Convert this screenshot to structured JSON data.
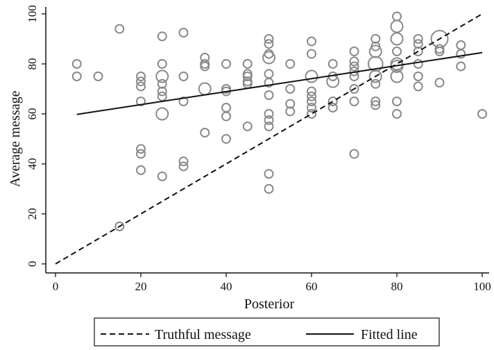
{
  "chart_data": {
    "type": "scatter",
    "xlabel": "Posterior",
    "ylabel": "Average message",
    "xlim": [
      0,
      100
    ],
    "ylim": [
      0,
      100
    ],
    "xticks": [
      0,
      20,
      40,
      60,
      80,
      100
    ],
    "yticks": [
      0,
      20,
      40,
      60,
      80,
      100
    ],
    "grid": false,
    "legend_position": "bottom",
    "legend": [
      {
        "label": "Truthful message",
        "style": "dashed"
      },
      {
        "label": "Fitted line",
        "style": "solid"
      }
    ],
    "lines": [
      {
        "name": "Truthful message",
        "style": "dashed",
        "x": [
          0,
          100
        ],
        "y": [
          0,
          100
        ]
      },
      {
        "name": "Fitted line",
        "style": "solid",
        "x": [
          5,
          100
        ],
        "y": [
          59.8,
          84.5
        ]
      }
    ],
    "points": [
      {
        "x": 5,
        "y": 80,
        "s": 1
      },
      {
        "x": 5,
        "y": 75,
        "s": 1
      },
      {
        "x": 10,
        "y": 75,
        "s": 1
      },
      {
        "x": 15,
        "y": 94,
        "s": 1
      },
      {
        "x": 15,
        "y": 15,
        "s": 1
      },
      {
        "x": 20,
        "y": 75,
        "s": 1
      },
      {
        "x": 20,
        "y": 73,
        "s": 1
      },
      {
        "x": 20,
        "y": 71,
        "s": 1
      },
      {
        "x": 20,
        "y": 65,
        "s": 1
      },
      {
        "x": 20,
        "y": 46,
        "s": 1
      },
      {
        "x": 20,
        "y": 44,
        "s": 1
      },
      {
        "x": 20,
        "y": 37.5,
        "s": 1
      },
      {
        "x": 25,
        "y": 91,
        "s": 1
      },
      {
        "x": 25,
        "y": 80,
        "s": 1
      },
      {
        "x": 25,
        "y": 75,
        "s": 2
      },
      {
        "x": 25,
        "y": 72,
        "s": 1
      },
      {
        "x": 25,
        "y": 69,
        "s": 1
      },
      {
        "x": 25,
        "y": 67,
        "s": 1
      },
      {
        "x": 25,
        "y": 60,
        "s": 2
      },
      {
        "x": 25,
        "y": 35,
        "s": 1
      },
      {
        "x": 30,
        "y": 92.5,
        "s": 1
      },
      {
        "x": 30,
        "y": 75,
        "s": 1
      },
      {
        "x": 30,
        "y": 65,
        "s": 1
      },
      {
        "x": 30,
        "y": 41,
        "s": 1
      },
      {
        "x": 30,
        "y": 39,
        "s": 1
      },
      {
        "x": 35,
        "y": 82.5,
        "s": 1
      },
      {
        "x": 35,
        "y": 80,
        "s": 1
      },
      {
        "x": 35,
        "y": 79,
        "s": 1
      },
      {
        "x": 35,
        "y": 70,
        "s": 2
      },
      {
        "x": 35,
        "y": 52.5,
        "s": 1
      },
      {
        "x": 40,
        "y": 80,
        "s": 1
      },
      {
        "x": 40,
        "y": 70,
        "s": 1
      },
      {
        "x": 40,
        "y": 69,
        "s": 1
      },
      {
        "x": 40,
        "y": 62.5,
        "s": 1
      },
      {
        "x": 40,
        "y": 59,
        "s": 1
      },
      {
        "x": 40,
        "y": 50,
        "s": 1
      },
      {
        "x": 45,
        "y": 80,
        "s": 1
      },
      {
        "x": 45,
        "y": 76,
        "s": 1
      },
      {
        "x": 45,
        "y": 75,
        "s": 1
      },
      {
        "x": 45,
        "y": 73,
        "s": 1
      },
      {
        "x": 45,
        "y": 72,
        "s": 1
      },
      {
        "x": 45,
        "y": 55,
        "s": 1
      },
      {
        "x": 50,
        "y": 90,
        "s": 1
      },
      {
        "x": 50,
        "y": 88,
        "s": 1
      },
      {
        "x": 50,
        "y": 84,
        "s": 1
      },
      {
        "x": 50,
        "y": 82.5,
        "s": 2
      },
      {
        "x": 50,
        "y": 76,
        "s": 1
      },
      {
        "x": 50,
        "y": 72.5,
        "s": 1
      },
      {
        "x": 50,
        "y": 67.5,
        "s": 1
      },
      {
        "x": 50,
        "y": 60,
        "s": 1
      },
      {
        "x": 50,
        "y": 57.5,
        "s": 1
      },
      {
        "x": 50,
        "y": 55,
        "s": 1
      },
      {
        "x": 50,
        "y": 36,
        "s": 1
      },
      {
        "x": 50,
        "y": 30,
        "s": 1
      },
      {
        "x": 55,
        "y": 80,
        "s": 1
      },
      {
        "x": 55,
        "y": 70,
        "s": 1
      },
      {
        "x": 55,
        "y": 64,
        "s": 1
      },
      {
        "x": 55,
        "y": 61,
        "s": 1
      },
      {
        "x": 60,
        "y": 89,
        "s": 1
      },
      {
        "x": 60,
        "y": 84,
        "s": 1
      },
      {
        "x": 60,
        "y": 75,
        "s": 2
      },
      {
        "x": 60,
        "y": 69,
        "s": 1
      },
      {
        "x": 60,
        "y": 67,
        "s": 1
      },
      {
        "x": 60,
        "y": 65,
        "s": 1
      },
      {
        "x": 60,
        "y": 62.5,
        "s": 1
      },
      {
        "x": 60,
        "y": 60,
        "s": 1
      },
      {
        "x": 65,
        "y": 80,
        "s": 1
      },
      {
        "x": 65,
        "y": 75,
        "s": 1
      },
      {
        "x": 65,
        "y": 73,
        "s": 2
      },
      {
        "x": 65,
        "y": 65,
        "s": 1
      },
      {
        "x": 65,
        "y": 62.5,
        "s": 1
      },
      {
        "x": 70,
        "y": 85,
        "s": 1
      },
      {
        "x": 70,
        "y": 81,
        "s": 1
      },
      {
        "x": 70,
        "y": 79,
        "s": 1
      },
      {
        "x": 70,
        "y": 77,
        "s": 1
      },
      {
        "x": 70,
        "y": 75,
        "s": 1
      },
      {
        "x": 70,
        "y": 70,
        "s": 1
      },
      {
        "x": 70,
        "y": 65,
        "s": 1
      },
      {
        "x": 70,
        "y": 44,
        "s": 1
      },
      {
        "x": 75,
        "y": 90,
        "s": 1
      },
      {
        "x": 75,
        "y": 87,
        "s": 1
      },
      {
        "x": 75,
        "y": 85,
        "s": 2
      },
      {
        "x": 75,
        "y": 80,
        "s": 3
      },
      {
        "x": 75,
        "y": 75,
        "s": 2
      },
      {
        "x": 75,
        "y": 72,
        "s": 1
      },
      {
        "x": 75,
        "y": 65,
        "s": 1
      },
      {
        "x": 75,
        "y": 63.5,
        "s": 1
      },
      {
        "x": 80,
        "y": 99,
        "s": 1
      },
      {
        "x": 80,
        "y": 95,
        "s": 2
      },
      {
        "x": 80,
        "y": 90,
        "s": 2
      },
      {
        "x": 80,
        "y": 85,
        "s": 1
      },
      {
        "x": 80,
        "y": 80,
        "s": 2
      },
      {
        "x": 80,
        "y": 79,
        "s": 2
      },
      {
        "x": 80,
        "y": 75,
        "s": 2
      },
      {
        "x": 80,
        "y": 65,
        "s": 1
      },
      {
        "x": 80,
        "y": 60,
        "s": 1
      },
      {
        "x": 85,
        "y": 90,
        "s": 1
      },
      {
        "x": 85,
        "y": 88,
        "s": 1
      },
      {
        "x": 85,
        "y": 85,
        "s": 1
      },
      {
        "x": 85,
        "y": 80,
        "s": 1
      },
      {
        "x": 85,
        "y": 75,
        "s": 1
      },
      {
        "x": 85,
        "y": 71,
        "s": 1
      },
      {
        "x": 90,
        "y": 90,
        "s": 4
      },
      {
        "x": 90,
        "y": 86,
        "s": 1
      },
      {
        "x": 90,
        "y": 85,
        "s": 1
      },
      {
        "x": 90,
        "y": 72.5,
        "s": 1
      },
      {
        "x": 95,
        "y": 87.5,
        "s": 1
      },
      {
        "x": 95,
        "y": 84,
        "s": 1
      },
      {
        "x": 95,
        "y": 79,
        "s": 1
      },
      {
        "x": 100,
        "y": 60,
        "s": 1
      }
    ]
  }
}
